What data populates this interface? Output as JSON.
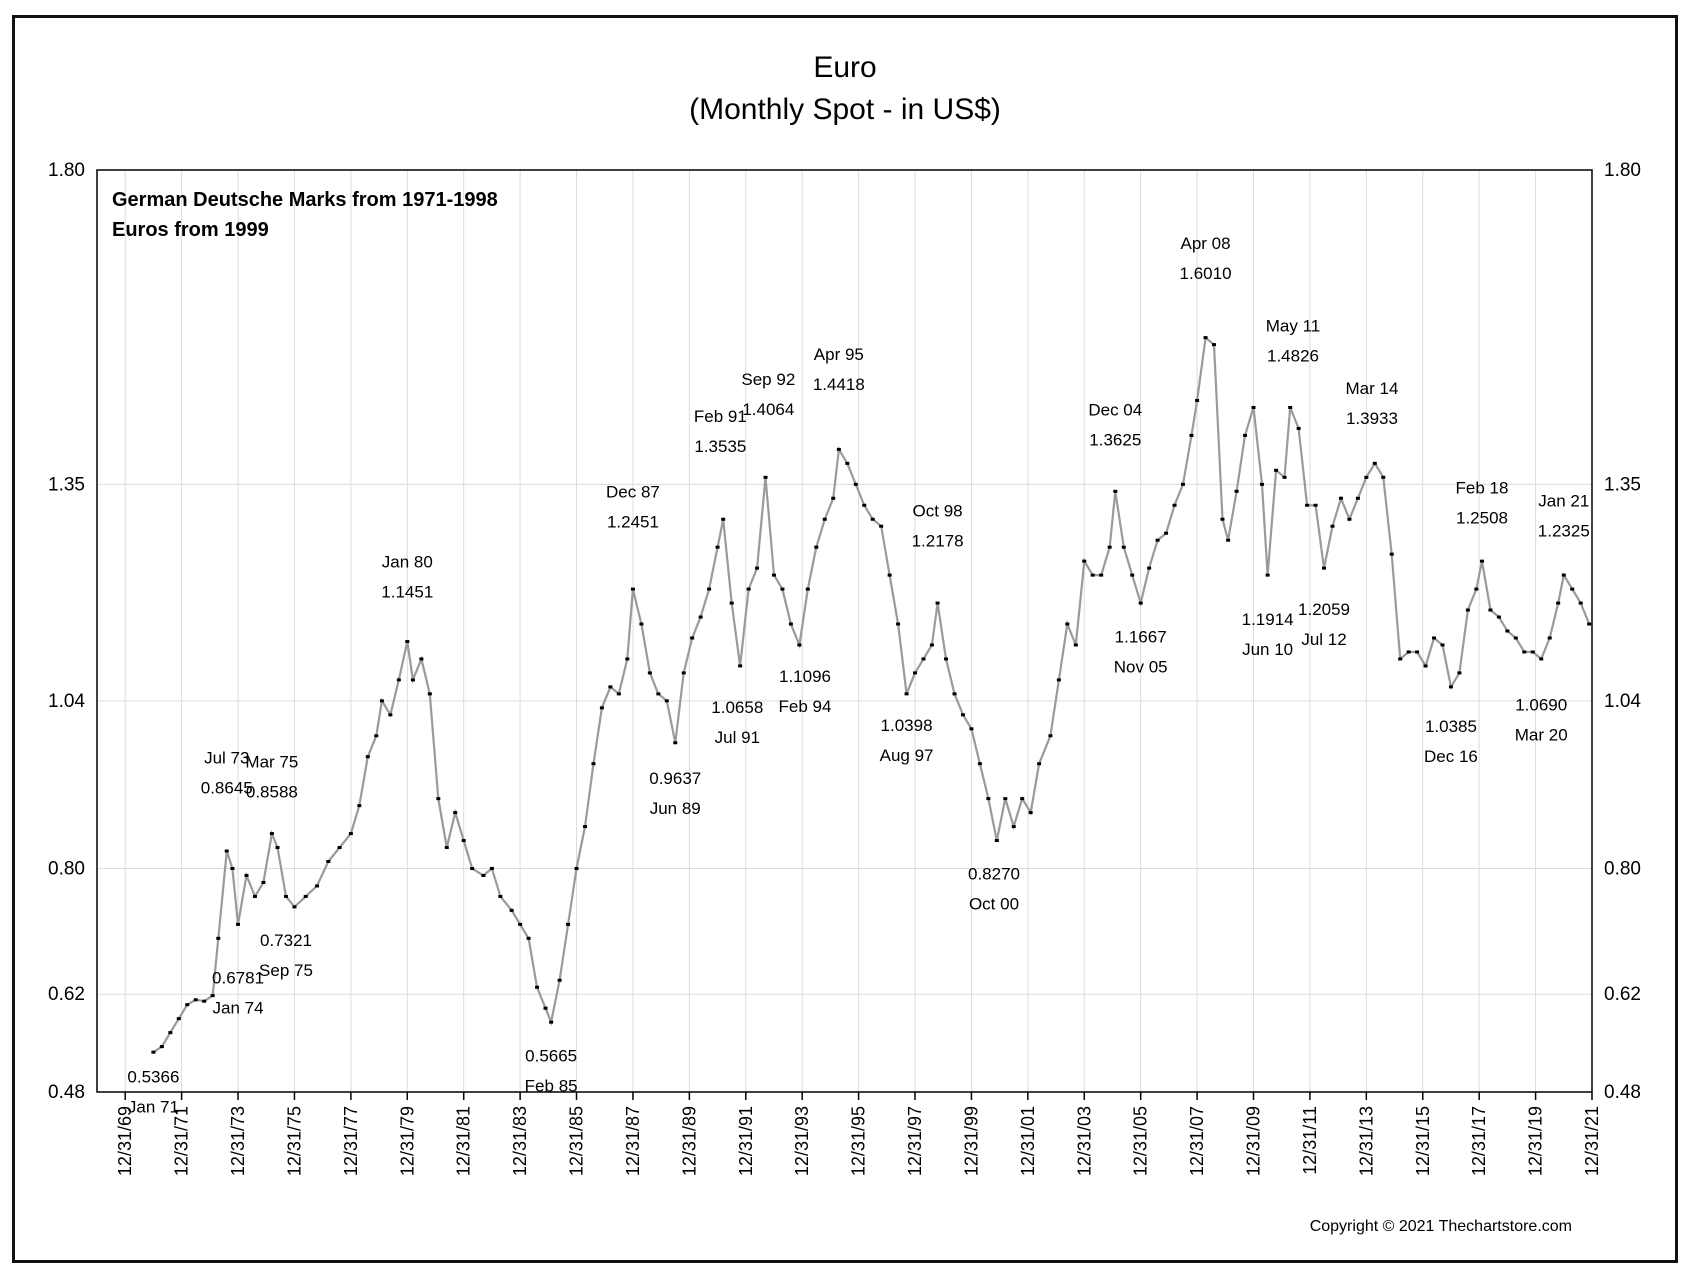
{
  "chart_data": {
    "type": "line",
    "title": "Euro",
    "subtitle": "(Monthly Spot - in US$)",
    "notes": [
      "German Deutsche Marks from 1971-1998",
      "Euros from 1999"
    ],
    "ylim": [
      0.48,
      1.8
    ],
    "y_ticks": [
      {
        "value": 0.48,
        "label": "0.48"
      },
      {
        "value": 0.62,
        "label": "0.62"
      },
      {
        "value": 0.8,
        "label": "0.80"
      },
      {
        "value": 1.04,
        "label": "1.04"
      },
      {
        "value": 1.35,
        "label": "1.35"
      },
      {
        "value": 1.8,
        "label": "1.80"
      }
    ],
    "xlim": [
      1969.0,
      2022.0
    ],
    "x_ticks": [
      {
        "value": 1970.0,
        "label": "12/31/69"
      },
      {
        "value": 1972.0,
        "label": "12/31/71"
      },
      {
        "value": 1974.0,
        "label": "12/31/73"
      },
      {
        "value": 1976.0,
        "label": "12/31/75"
      },
      {
        "value": 1978.0,
        "label": "12/31/77"
      },
      {
        "value": 1980.0,
        "label": "12/31/79"
      },
      {
        "value": 1982.0,
        "label": "12/31/81"
      },
      {
        "value": 1984.0,
        "label": "12/31/83"
      },
      {
        "value": 1986.0,
        "label": "12/31/85"
      },
      {
        "value": 1988.0,
        "label": "12/31/87"
      },
      {
        "value": 1990.0,
        "label": "12/31/89"
      },
      {
        "value": 1992.0,
        "label": "12/31/91"
      },
      {
        "value": 1994.0,
        "label": "12/31/93"
      },
      {
        "value": 1996.0,
        "label": "12/31/95"
      },
      {
        "value": 1998.0,
        "label": "12/31/97"
      },
      {
        "value": 2000.0,
        "label": "12/31/99"
      },
      {
        "value": 2002.0,
        "label": "12/31/01"
      },
      {
        "value": 2004.0,
        "label": "12/31/03"
      },
      {
        "value": 2006.0,
        "label": "12/31/05"
      },
      {
        "value": 2008.0,
        "label": "12/31/07"
      },
      {
        "value": 2010.0,
        "label": "12/31/09"
      },
      {
        "value": 2012.0,
        "label": "12/31/11"
      },
      {
        "value": 2014.0,
        "label": "12/31/13"
      },
      {
        "value": 2016.0,
        "label": "12/31/15"
      },
      {
        "value": 2018.0,
        "label": "12/31/17"
      },
      {
        "value": 2020.0,
        "label": "12/31/19"
      },
      {
        "value": 2022.0,
        "label": "12/31/21"
      }
    ],
    "grid": true,
    "series": [
      {
        "points": [
          [
            1971.0,
            0.537
          ],
          [
            1971.3,
            0.545
          ],
          [
            1971.6,
            0.565
          ],
          [
            1971.9,
            0.585
          ],
          [
            1972.2,
            0.605
          ],
          [
            1972.5,
            0.612
          ],
          [
            1972.8,
            0.61
          ],
          [
            1973.1,
            0.618
          ],
          [
            1973.3,
            0.7
          ],
          [
            1973.6,
            0.825
          ],
          [
            1973.8,
            0.8
          ],
          [
            1974.0,
            0.72
          ],
          [
            1974.3,
            0.79
          ],
          [
            1974.6,
            0.76
          ],
          [
            1974.9,
            0.78
          ],
          [
            1975.2,
            0.85
          ],
          [
            1975.4,
            0.83
          ],
          [
            1975.7,
            0.76
          ],
          [
            1976.0,
            0.745
          ],
          [
            1976.4,
            0.76
          ],
          [
            1976.8,
            0.775
          ],
          [
            1977.2,
            0.81
          ],
          [
            1977.6,
            0.83
          ],
          [
            1978.0,
            0.85
          ],
          [
            1978.3,
            0.89
          ],
          [
            1978.6,
            0.96
          ],
          [
            1978.9,
            0.99
          ],
          [
            1979.1,
            1.04
          ],
          [
            1979.4,
            1.02
          ],
          [
            1979.7,
            1.07
          ],
          [
            1980.0,
            1.125
          ],
          [
            1980.2,
            1.07
          ],
          [
            1980.5,
            1.1
          ],
          [
            1980.8,
            1.05
          ],
          [
            1981.1,
            0.9
          ],
          [
            1981.4,
            0.83
          ],
          [
            1981.7,
            0.88
          ],
          [
            1982.0,
            0.84
          ],
          [
            1982.3,
            0.8
          ],
          [
            1982.7,
            0.79
          ],
          [
            1983.0,
            0.8
          ],
          [
            1983.3,
            0.76
          ],
          [
            1983.7,
            0.74
          ],
          [
            1984.0,
            0.72
          ],
          [
            1984.3,
            0.7
          ],
          [
            1984.6,
            0.63
          ],
          [
            1984.9,
            0.6
          ],
          [
            1985.1,
            0.58
          ],
          [
            1985.4,
            0.64
          ],
          [
            1985.7,
            0.72
          ],
          [
            1986.0,
            0.8
          ],
          [
            1986.3,
            0.86
          ],
          [
            1986.6,
            0.95
          ],
          [
            1986.9,
            1.03
          ],
          [
            1987.2,
            1.06
          ],
          [
            1987.5,
            1.05
          ],
          [
            1987.8,
            1.1
          ],
          [
            1988.0,
            1.2
          ],
          [
            1988.3,
            1.15
          ],
          [
            1988.6,
            1.08
          ],
          [
            1988.9,
            1.05
          ],
          [
            1989.2,
            1.04
          ],
          [
            1989.5,
            0.98
          ],
          [
            1989.8,
            1.08
          ],
          [
            1990.1,
            1.13
          ],
          [
            1990.4,
            1.16
          ],
          [
            1990.7,
            1.2
          ],
          [
            1991.0,
            1.26
          ],
          [
            1991.2,
            1.3
          ],
          [
            1991.5,
            1.18
          ],
          [
            1991.8,
            1.09
          ],
          [
            1992.1,
            1.2
          ],
          [
            1992.4,
            1.23
          ],
          [
            1992.7,
            1.36
          ],
          [
            1993.0,
            1.22
          ],
          [
            1993.3,
            1.2
          ],
          [
            1993.6,
            1.15
          ],
          [
            1993.9,
            1.12
          ],
          [
            1994.2,
            1.2
          ],
          [
            1994.5,
            1.26
          ],
          [
            1994.8,
            1.3
          ],
          [
            1995.1,
            1.33
          ],
          [
            1995.3,
            1.4
          ],
          [
            1995.6,
            1.38
          ],
          [
            1995.9,
            1.35
          ],
          [
            1996.2,
            1.32
          ],
          [
            1996.5,
            1.3
          ],
          [
            1996.8,
            1.29
          ],
          [
            1997.1,
            1.22
          ],
          [
            1997.4,
            1.15
          ],
          [
            1997.7,
            1.05
          ],
          [
            1998.0,
            1.08
          ],
          [
            1998.3,
            1.1
          ],
          [
            1998.6,
            1.12
          ],
          [
            1998.8,
            1.18
          ],
          [
            1999.1,
            1.1
          ],
          [
            1999.4,
            1.05
          ],
          [
            1999.7,
            1.02
          ],
          [
            2000.0,
            1.0
          ],
          [
            2000.3,
            0.95
          ],
          [
            2000.6,
            0.9
          ],
          [
            2000.9,
            0.84
          ],
          [
            2001.2,
            0.9
          ],
          [
            2001.5,
            0.86
          ],
          [
            2001.8,
            0.9
          ],
          [
            2002.1,
            0.88
          ],
          [
            2002.4,
            0.95
          ],
          [
            2002.8,
            0.99
          ],
          [
            2003.1,
            1.07
          ],
          [
            2003.4,
            1.15
          ],
          [
            2003.7,
            1.12
          ],
          [
            2004.0,
            1.24
          ],
          [
            2004.3,
            1.22
          ],
          [
            2004.6,
            1.22
          ],
          [
            2004.9,
            1.26
          ],
          [
            2005.1,
            1.34
          ],
          [
            2005.4,
            1.26
          ],
          [
            2005.7,
            1.22
          ],
          [
            2006.0,
            1.18
          ],
          [
            2006.3,
            1.23
          ],
          [
            2006.6,
            1.27
          ],
          [
            2006.9,
            1.28
          ],
          [
            2007.2,
            1.32
          ],
          [
            2007.5,
            1.35
          ],
          [
            2007.8,
            1.42
          ],
          [
            2008.0,
            1.47
          ],
          [
            2008.3,
            1.56
          ],
          [
            2008.6,
            1.55
          ],
          [
            2008.9,
            1.3
          ],
          [
            2009.1,
            1.27
          ],
          [
            2009.4,
            1.34
          ],
          [
            2009.7,
            1.42
          ],
          [
            2010.0,
            1.46
          ],
          [
            2010.3,
            1.35
          ],
          [
            2010.5,
            1.22
          ],
          [
            2010.8,
            1.37
          ],
          [
            2011.1,
            1.36
          ],
          [
            2011.3,
            1.46
          ],
          [
            2011.6,
            1.43
          ],
          [
            2011.9,
            1.32
          ],
          [
            2012.2,
            1.32
          ],
          [
            2012.5,
            1.23
          ],
          [
            2012.8,
            1.29
          ],
          [
            2013.1,
            1.33
          ],
          [
            2013.4,
            1.3
          ],
          [
            2013.7,
            1.33
          ],
          [
            2014.0,
            1.36
          ],
          [
            2014.3,
            1.38
          ],
          [
            2014.6,
            1.36
          ],
          [
            2014.9,
            1.25
          ],
          [
            2015.2,
            1.1
          ],
          [
            2015.5,
            1.11
          ],
          [
            2015.8,
            1.11
          ],
          [
            2016.1,
            1.09
          ],
          [
            2016.4,
            1.13
          ],
          [
            2016.7,
            1.12
          ],
          [
            2017.0,
            1.06
          ],
          [
            2017.3,
            1.08
          ],
          [
            2017.6,
            1.17
          ],
          [
            2017.9,
            1.2
          ],
          [
            2018.1,
            1.24
          ],
          [
            2018.4,
            1.17
          ],
          [
            2018.7,
            1.16
          ],
          [
            2019.0,
            1.14
          ],
          [
            2019.3,
            1.13
          ],
          [
            2019.6,
            1.11
          ],
          [
            2019.9,
            1.11
          ],
          [
            2020.2,
            1.1
          ],
          [
            2020.5,
            1.13
          ],
          [
            2020.8,
            1.18
          ],
          [
            2021.0,
            1.22
          ],
          [
            2021.3,
            1.2
          ],
          [
            2021.6,
            1.18
          ],
          [
            2021.9,
            1.15
          ]
        ]
      }
    ],
    "annotations": [
      {
        "label": "0.5366",
        "date": "Jan 71",
        "x": 1971.0,
        "y": 0.5366,
        "position": "below"
      },
      {
        "label": "0.8645",
        "date": "Jul 73",
        "x": 1973.6,
        "y": 0.8645,
        "position": "above"
      },
      {
        "label": "0.6781",
        "date": "Jan 74",
        "x": 1974.0,
        "y": 0.6781,
        "position": "below"
      },
      {
        "label": "0.8588",
        "date": "Mar 75",
        "x": 1975.2,
        "y": 0.8588,
        "position": "above"
      },
      {
        "label": "0.7321",
        "date": "Sep 75",
        "x": 1975.7,
        "y": 0.7321,
        "position": "below"
      },
      {
        "label": "1.1451",
        "date": "Jan 80",
        "x": 1980.0,
        "y": 1.1451,
        "position": "above"
      },
      {
        "label": "0.5665",
        "date": "Feb 85",
        "x": 1985.1,
        "y": 0.5665,
        "position": "below"
      },
      {
        "label": "1.2451",
        "date": "Dec 87",
        "x": 1988.0,
        "y": 1.2451,
        "position": "above"
      },
      {
        "label": "0.9637",
        "date": "Jun 89",
        "x": 1989.5,
        "y": 0.9637,
        "position": "below"
      },
      {
        "label": "1.3535",
        "date": "Feb 91",
        "x": 1991.1,
        "y": 1.3535,
        "position": "above"
      },
      {
        "label": "1.0658",
        "date": "Jul 91",
        "x": 1991.7,
        "y": 1.0658,
        "position": "below"
      },
      {
        "label": "1.4064",
        "date": "Sep 92",
        "x": 1992.8,
        "y": 1.4064,
        "position": "above"
      },
      {
        "label": "1.1096",
        "date": "Feb 94",
        "x": 1994.1,
        "y": 1.1096,
        "position": "below"
      },
      {
        "label": "1.4418",
        "date": "Apr 95",
        "x": 1995.3,
        "y": 1.4418,
        "position": "above"
      },
      {
        "label": "1.0398",
        "date": "Aug 97",
        "x": 1997.7,
        "y": 1.0398,
        "position": "below"
      },
      {
        "label": "1.2178",
        "date": "Oct 98",
        "x": 1998.8,
        "y": 1.2178,
        "position": "above"
      },
      {
        "label": "0.8270",
        "date": "Oct 00",
        "x": 2000.8,
        "y": 0.827,
        "position": "below"
      },
      {
        "label": "1.3625",
        "date": "Dec 04",
        "x": 2005.1,
        "y": 1.3625,
        "position": "above"
      },
      {
        "label": "1.1667",
        "date": "Nov 05",
        "x": 2006.0,
        "y": 1.1667,
        "position": "below"
      },
      {
        "label": "1.6010",
        "date": "Apr 08",
        "x": 2008.3,
        "y": 1.601,
        "position": "above"
      },
      {
        "label": "1.1914",
        "date": "Jun 10",
        "x": 2010.5,
        "y": 1.1914,
        "position": "below"
      },
      {
        "label": "1.4826",
        "date": "May 11",
        "x": 2011.4,
        "y": 1.4826,
        "position": "above"
      },
      {
        "label": "1.2059",
        "date": "Jul 12",
        "x": 2012.5,
        "y": 1.2059,
        "position": "below"
      },
      {
        "label": "1.3933",
        "date": "Mar 14",
        "x": 2014.2,
        "y": 1.3933,
        "position": "above"
      },
      {
        "label": "1.0385",
        "date": "Dec 16",
        "x": 2017.0,
        "y": 1.0385,
        "position": "below"
      },
      {
        "label": "1.2508",
        "date": "Feb 18",
        "x": 2018.1,
        "y": 1.2508,
        "position": "above"
      },
      {
        "label": "1.0690",
        "date": "Mar 20",
        "x": 2020.2,
        "y": 1.069,
        "position": "below"
      },
      {
        "label": "1.2325",
        "date": "Jan 21",
        "x": 2021.0,
        "y": 1.2325,
        "position": "above"
      }
    ]
  },
  "copyright": "Copyright © 2021 Thechartstore.com"
}
